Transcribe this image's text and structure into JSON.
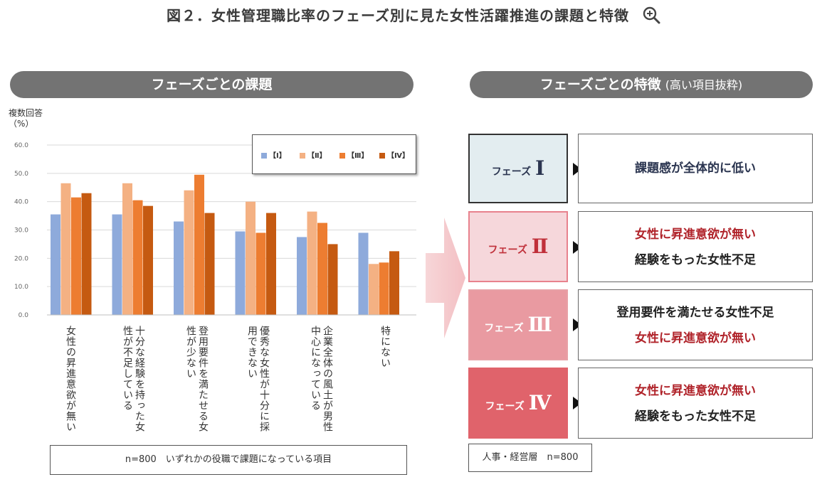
{
  "title": "図２．女性管理職比率のフェーズ別に見た女性活躍推進の課題と特徴",
  "zoom_icon": "zoom-in-icon",
  "left_panel": {
    "header": "フェーズごとの課題",
    "unit_line1": "複数回答",
    "unit_line2": "（%）",
    "note": "n=800　いずれかの役職で課題になっている項目"
  },
  "right_panel": {
    "header": "フェーズごとの特徴",
    "header_sub": "(高い項目抜粋)",
    "note": "人事・経営層　n=800",
    "phases": [
      {
        "label": "フェーズ",
        "numeral": "Ⅰ",
        "lines": [
          {
            "text": "課題感が全体的に低い",
            "tone": "navy"
          }
        ],
        "fill": "#e3edf0",
        "border": "#333333",
        "text_color": "#2b3550"
      },
      {
        "label": "フェーズ",
        "numeral": "Ⅱ",
        "lines": [
          {
            "text": "女性に昇進意欲が無い",
            "tone": "red"
          },
          {
            "text": "経験をもった女性不足",
            "tone": "dark"
          }
        ],
        "fill": "#f6d7db",
        "border": "#e8828d",
        "text_color": "#c0303a"
      },
      {
        "label": "フェーズ",
        "numeral": "Ⅲ",
        "lines": [
          {
            "text": "登用要件を満たせる女性不足",
            "tone": "dark"
          },
          {
            "text": "女性に昇進意欲が無い",
            "tone": "red"
          }
        ],
        "fill": "#e99aa1",
        "border": "#e8a0a6",
        "text_color": "#ffffff"
      },
      {
        "label": "フェーズ",
        "numeral": "Ⅳ",
        "lines": [
          {
            "text": "女性に昇進意欲が無い",
            "tone": "red"
          },
          {
            "text": "経験をもった女性不足",
            "tone": "dark"
          }
        ],
        "fill": "#e0636b",
        "border": "#e0636b",
        "text_color": "#ffffff"
      }
    ]
  },
  "chart_data": {
    "type": "bar",
    "ylabel": "複数回答（%）",
    "ylim": [
      0,
      60
    ],
    "yticks": [
      "0.0",
      "10.0",
      "20.0",
      "30.0",
      "40.0",
      "50.0",
      "60.0"
    ],
    "grid": true,
    "legend_position": "top-right",
    "categories": [
      "女性の昇進意欲が無い",
      "十分な経験を持った女性が不足している",
      "登用要件を満たせる女性が少ない",
      "優秀な女性が十分に採用できない",
      "企業全体の風土が男性中心になっている",
      "特にない"
    ],
    "series": [
      {
        "name": "【Ⅰ】",
        "color": "#8eaadb",
        "values": [
          35.5,
          35.5,
          33.0,
          29.5,
          27.5,
          29.0
        ]
      },
      {
        "name": "【Ⅱ】",
        "color": "#f4b183",
        "values": [
          46.5,
          46.5,
          44.0,
          40.0,
          36.5,
          18.0
        ]
      },
      {
        "name": "【Ⅲ】",
        "color": "#ed7d31",
        "values": [
          41.5,
          40.5,
          49.5,
          29.0,
          32.5,
          18.5
        ]
      },
      {
        "name": "【Ⅳ】",
        "color": "#c55a11",
        "values": [
          43.0,
          38.5,
          36.0,
          36.0,
          25.0,
          22.5
        ]
      }
    ]
  }
}
